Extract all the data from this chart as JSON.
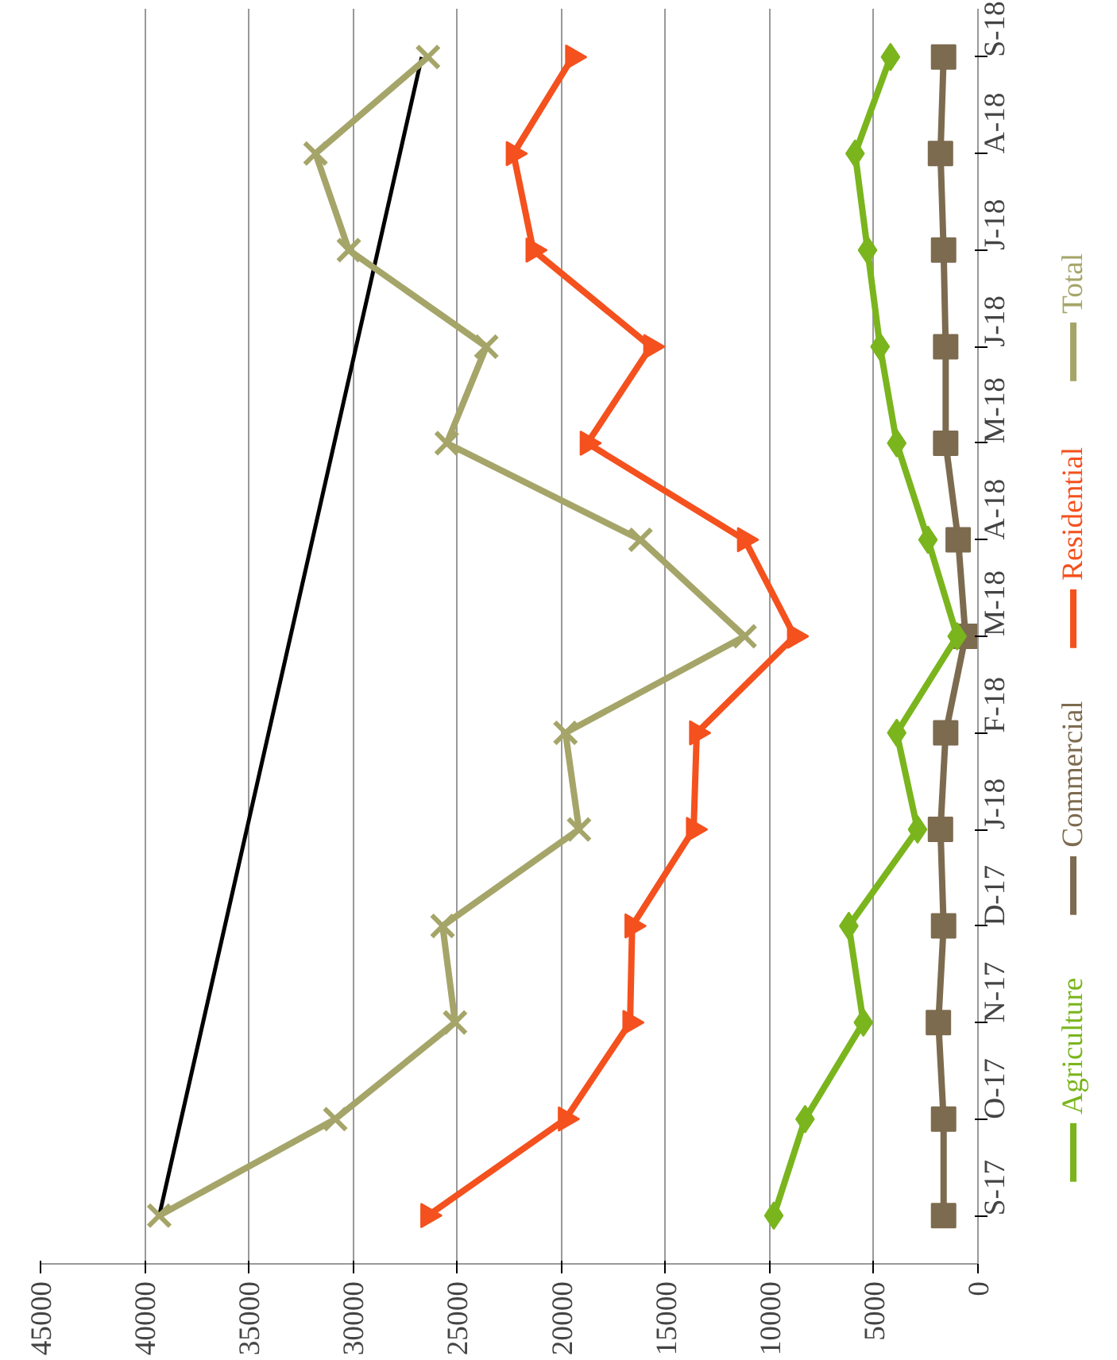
{
  "chart_data": {
    "type": "line",
    "orientation": "horizontal",
    "categories": [
      "S-18",
      "A-18",
      "J-18",
      "J-18",
      "M-18",
      "A-18",
      "M-18",
      "F-18",
      "J-18",
      "D-17",
      "N-17",
      "O-17",
      "S-17"
    ],
    "series": [
      {
        "name": "Agriculture",
        "color": "#7ab51d",
        "marker": "diamond",
        "values": [
          4200,
          5900,
          5300,
          4700,
          3900,
          2400,
          1000,
          3900,
          2900,
          6200,
          5500,
          8300,
          9800
        ]
      },
      {
        "name": "Commercial",
        "color": "#7d6b4f",
        "marker": "square",
        "values": [
          1650,
          1800,
          1650,
          1550,
          1550,
          950,
          600,
          1550,
          1800,
          1650,
          1900,
          1650,
          1650
        ]
      },
      {
        "name": "Residential",
        "color": "#f4511e",
        "marker": "triangle",
        "values": [
          19450,
          22300,
          21350,
          15700,
          18750,
          11200,
          8800,
          13500,
          13650,
          16600,
          16700,
          19800,
          26400
        ]
      },
      {
        "name": "Total",
        "color": "#a5a569",
        "marker": "cross",
        "values": [
          26400,
          31800,
          30200,
          23600,
          25500,
          16200,
          11200,
          19800,
          19150,
          25700,
          25100,
          30850,
          39300
        ]
      },
      {
        "type": "line",
        "color": "#000000",
        "marker": "none",
        "values": [
          26700,
          null,
          null,
          null,
          null,
          null,
          null,
          null,
          null,
          null,
          null,
          null,
          39300
        ]
      }
    ],
    "xlim": [
      45000,
      0
    ],
    "xticks": [
      0,
      5000,
      10000,
      15000,
      20000,
      25000,
      30000,
      35000,
      40000,
      45000
    ],
    "grid": "x",
    "legend": "bottom"
  }
}
